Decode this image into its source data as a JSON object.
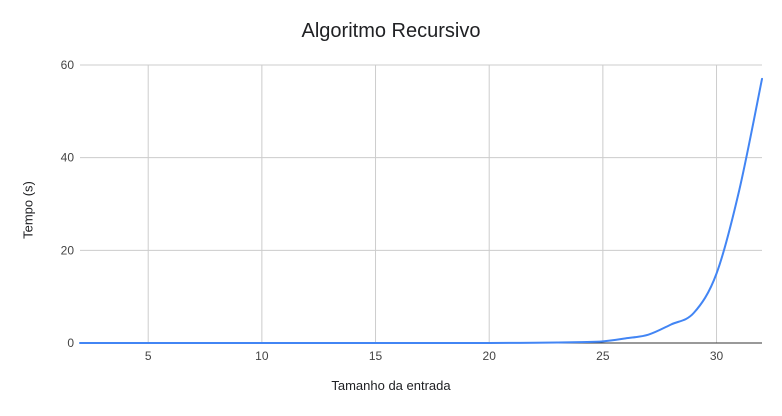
{
  "chart_data": {
    "type": "line",
    "title": "Algoritmo Recursivo",
    "xlabel": "Tamanho da entrada",
    "ylabel": "Tempo (s)",
    "xlim": [
      2,
      32
    ],
    "ylim": [
      0,
      60
    ],
    "xticks": [
      5,
      10,
      15,
      20,
      25,
      30
    ],
    "yticks": [
      0,
      20,
      40,
      60
    ],
    "grid": true,
    "legend": "none",
    "series": [
      {
        "color": "#4285f4",
        "x": [
          2,
          3,
          4,
          5,
          6,
          7,
          8,
          9,
          10,
          11,
          12,
          13,
          14,
          15,
          16,
          17,
          18,
          19,
          20,
          21,
          22,
          23,
          24,
          25,
          26,
          27,
          28,
          29,
          30,
          31,
          32
        ],
        "y": [
          0,
          0,
          0,
          0,
          0,
          0,
          0,
          0,
          0,
          0,
          0,
          0,
          0,
          0,
          0,
          0,
          0,
          0,
          0,
          0.02,
          0.04,
          0.1,
          0.2,
          0.35,
          1.0,
          1.8,
          4.0,
          6.5,
          15.0,
          33.0,
          57.0
        ]
      }
    ]
  }
}
